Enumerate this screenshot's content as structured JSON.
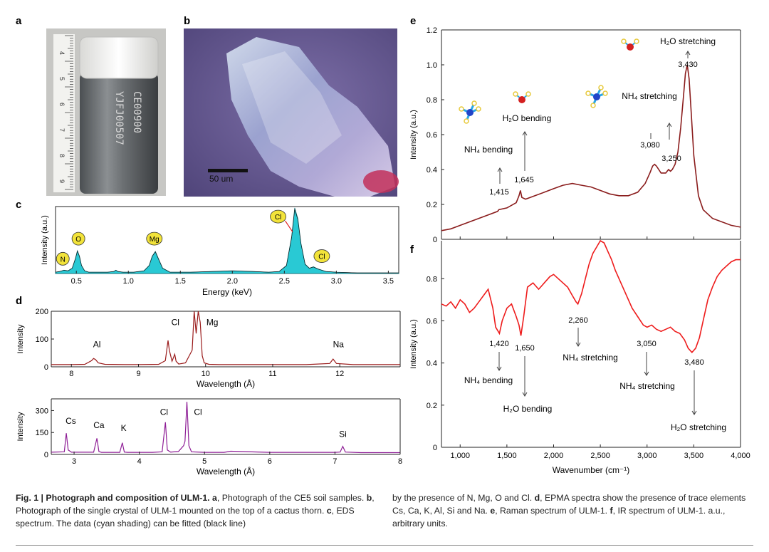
{
  "panels": {
    "a": {
      "label": "a",
      "ruler_numbers": [
        "4",
        "5",
        "6",
        "7",
        "8",
        "9"
      ],
      "vial_text": [
        "CE00900",
        "YJFJ00507"
      ]
    },
    "b": {
      "label": "b",
      "scalebar": "50 um"
    }
  },
  "chart_data": [
    {
      "id": "c",
      "type": "area",
      "panel_label": "c",
      "title": "",
      "xlabel": "Energy (keV)",
      "ylabel": "Intensity (a.u.)",
      "xlim": [
        0.3,
        3.6
      ],
      "ylim": [
        0,
        1.0
      ],
      "xticks": [
        "0.5",
        "1.0",
        "1.5",
        "2.0",
        "2.5",
        "3.0",
        "3.5"
      ],
      "x": [
        0.3,
        0.34,
        0.38,
        0.42,
        0.46,
        0.49,
        0.51,
        0.53,
        0.55,
        0.58,
        0.62,
        0.7,
        0.8,
        0.86,
        0.88,
        0.9,
        0.95,
        1.05,
        1.15,
        1.2,
        1.23,
        1.26,
        1.29,
        1.33,
        1.4,
        1.6,
        1.8,
        2.0,
        2.2,
        2.35,
        2.45,
        2.52,
        2.57,
        2.6,
        2.63,
        2.66,
        2.7,
        2.74,
        2.78,
        2.82,
        2.9,
        3.0,
        3.2,
        3.4,
        3.6
      ],
      "y": [
        0.02,
        0.03,
        0.05,
        0.04,
        0.08,
        0.22,
        0.34,
        0.26,
        0.12,
        0.04,
        0.02,
        0.02,
        0.02,
        0.03,
        0.05,
        0.03,
        0.02,
        0.02,
        0.04,
        0.12,
        0.26,
        0.33,
        0.22,
        0.08,
        0.02,
        0.02,
        0.03,
        0.04,
        0.03,
        0.02,
        0.03,
        0.12,
        0.55,
        0.98,
        0.82,
        0.45,
        0.14,
        0.08,
        0.1,
        0.07,
        0.03,
        0.02,
        0.01,
        0.01,
        0.01
      ],
      "annotations": [
        {
          "text": "N",
          "x": 0.37,
          "y": 0.22
        },
        {
          "text": "O",
          "x": 0.52,
          "y": 0.52
        },
        {
          "text": "Mg",
          "x": 1.25,
          "y": 0.52
        },
        {
          "text": "Cl",
          "x": 2.44,
          "y": 0.85
        },
        {
          "text": "Cl",
          "x": 2.86,
          "y": 0.26
        }
      ]
    },
    {
      "id": "d1",
      "type": "line",
      "panel_label": "d",
      "xlabel": "Wavelength (Å)",
      "ylabel": "Intensity",
      "xlim": [
        7.7,
        12.9
      ],
      "ylim": [
        0,
        200
      ],
      "xticks": [
        "8",
        "9",
        "10",
        "11",
        "12"
      ],
      "yticks": [
        "0",
        "100",
        "200"
      ],
      "x": [
        7.7,
        8.0,
        8.2,
        8.3,
        8.33,
        8.36,
        8.4,
        8.5,
        8.8,
        9.0,
        9.3,
        9.4,
        9.44,
        9.46,
        9.5,
        9.54,
        9.56,
        9.6,
        9.7,
        9.8,
        9.83,
        9.86,
        9.89,
        9.92,
        9.95,
        9.98,
        10.05,
        10.2,
        10.5,
        11.0,
        11.5,
        11.85,
        11.9,
        11.95,
        12.2,
        12.6,
        12.9
      ],
      "y": [
        8,
        8,
        9,
        22,
        30,
        26,
        14,
        9,
        8,
        8,
        9,
        22,
        95,
        60,
        20,
        45,
        20,
        10,
        14,
        60,
        200,
        120,
        210,
        160,
        40,
        14,
        9,
        8,
        8,
        8,
        8,
        12,
        28,
        12,
        8,
        8,
        8
      ],
      "annotations": [
        {
          "text": "Al",
          "x": 8.38,
          "y": 70
        },
        {
          "text": "Cl",
          "x": 9.55,
          "y": 150
        },
        {
          "text": "Mg",
          "x": 10.1,
          "y": 150
        },
        {
          "text": "Na",
          "x": 11.98,
          "y": 70
        }
      ]
    },
    {
      "id": "d2",
      "type": "line",
      "xlabel": "Wavelength (Å)",
      "ylabel": "Intensity",
      "xlim": [
        2.65,
        8.0
      ],
      "ylim": [
        0,
        380
      ],
      "xticks": [
        "3",
        "4",
        "5",
        "6",
        "7",
        "8"
      ],
      "yticks": [
        "0",
        "150",
        "300"
      ],
      "x": [
        2.65,
        2.85,
        2.88,
        2.91,
        2.96,
        3.3,
        3.35,
        3.38,
        3.42,
        3.7,
        3.74,
        3.77,
        3.82,
        4.2,
        4.35,
        4.4,
        4.43,
        4.48,
        4.6,
        4.68,
        4.7,
        4.73,
        4.76,
        4.8,
        5.0,
        5.3,
        5.4,
        6.0,
        7.0,
        7.08,
        7.12,
        7.16,
        7.4,
        8.0
      ],
      "y": [
        15,
        18,
        145,
        30,
        15,
        15,
        110,
        20,
        14,
        14,
        80,
        16,
        14,
        14,
        18,
        220,
        30,
        16,
        20,
        60,
        90,
        360,
        60,
        18,
        14,
        14,
        22,
        14,
        14,
        16,
        55,
        16,
        12,
        12
      ],
      "annotations": [
        {
          "text": "Cs",
          "x": 2.95,
          "y": 210
        },
        {
          "text": "Ca",
          "x": 3.38,
          "y": 180
        },
        {
          "text": "K",
          "x": 3.76,
          "y": 160
        },
        {
          "text": "Cl",
          "x": 4.38,
          "y": 270
        },
        {
          "text": "Cl",
          "x": 4.9,
          "y": 270
        },
        {
          "text": "Si",
          "x": 7.12,
          "y": 120
        }
      ]
    },
    {
      "id": "e",
      "type": "line",
      "panel_label": "e",
      "ylabel": "Intensity (a.u.)",
      "xlim": [
        800,
        4000
      ],
      "ylim": [
        0,
        1.2
      ],
      "yticks": [
        "0",
        "0.2",
        "0.4",
        "0.6",
        "0.8",
        "1.0",
        "1.2"
      ],
      "x": [
        800,
        900,
        1000,
        1100,
        1200,
        1300,
        1400,
        1415,
        1500,
        1600,
        1630,
        1645,
        1660,
        1700,
        1800,
        1900,
        2000,
        2100,
        2200,
        2300,
        2400,
        2500,
        2600,
        2700,
        2800,
        2900,
        2980,
        3030,
        3060,
        3080,
        3100,
        3150,
        3200,
        3230,
        3250,
        3270,
        3300,
        3330,
        3360,
        3390,
        3410,
        3430,
        3450,
        3470,
        3500,
        3550,
        3600,
        3700,
        3800,
        3900,
        4000
      ],
      "y": [
        0.05,
        0.06,
        0.08,
        0.1,
        0.12,
        0.14,
        0.16,
        0.17,
        0.18,
        0.21,
        0.25,
        0.28,
        0.24,
        0.23,
        0.25,
        0.27,
        0.29,
        0.31,
        0.32,
        0.31,
        0.3,
        0.28,
        0.26,
        0.25,
        0.25,
        0.27,
        0.32,
        0.38,
        0.42,
        0.43,
        0.42,
        0.38,
        0.38,
        0.4,
        0.39,
        0.4,
        0.43,
        0.5,
        0.64,
        0.82,
        0.95,
        1.0,
        0.92,
        0.75,
        0.48,
        0.25,
        0.17,
        0.12,
        0.1,
        0.08,
        0.07
      ],
      "annotations": [
        {
          "text": "1,415",
          "x": 1415
        },
        {
          "text": "1,645",
          "x": 1645
        },
        {
          "text": "3,080",
          "x": 3080
        },
        {
          "text": "3,250",
          "x": 3250
        },
        {
          "text": "3,430",
          "x": 3430
        }
      ],
      "labels": {
        "nh4_bending": "NH₄ bending",
        "h2o_bending": "H₂O bending",
        "nh4_stretching": "NH₄ stretching",
        "h2o_stretching": "H₂O stretching"
      }
    },
    {
      "id": "f",
      "type": "line",
      "panel_label": "f",
      "xlabel": "Wavenumber (cm⁻¹)",
      "ylabel": "Intensity (a.u.)",
      "xlim": [
        800,
        4000
      ],
      "ylim": [
        0,
        0.98
      ],
      "xticks": [
        "1,000",
        "1,500",
        "2,000",
        "2,500",
        "3,000",
        "3,500",
        "4,000"
      ],
      "yticks": [
        "0",
        "0.2",
        "0.4",
        "0.6",
        "0.8"
      ],
      "x": [
        800,
        850,
        900,
        950,
        1000,
        1050,
        1100,
        1150,
        1200,
        1250,
        1300,
        1350,
        1380,
        1420,
        1450,
        1500,
        1550,
        1600,
        1630,
        1650,
        1680,
        1720,
        1780,
        1840,
        1900,
        1960,
        2000,
        2050,
        2100,
        2150,
        2200,
        2240,
        2260,
        2300,
        2340,
        2380,
        2420,
        2460,
        2500,
        2540,
        2580,
        2620,
        2660,
        2720,
        2780,
        2840,
        2900,
        2960,
        3000,
        3050,
        3100,
        3150,
        3200,
        3250,
        3300,
        3350,
        3400,
        3440,
        3480,
        3520,
        3560,
        3600,
        3650,
        3700,
        3750,
        3800,
        3850,
        3900,
        3950,
        4000
      ],
      "y": [
        0.68,
        0.67,
        0.69,
        0.66,
        0.7,
        0.68,
        0.64,
        0.66,
        0.69,
        0.72,
        0.75,
        0.66,
        0.57,
        0.54,
        0.6,
        0.66,
        0.68,
        0.62,
        0.58,
        0.53,
        0.62,
        0.76,
        0.78,
        0.75,
        0.78,
        0.81,
        0.82,
        0.8,
        0.78,
        0.76,
        0.72,
        0.69,
        0.68,
        0.73,
        0.8,
        0.87,
        0.92,
        0.95,
        0.98,
        0.97,
        0.93,
        0.89,
        0.84,
        0.78,
        0.72,
        0.66,
        0.62,
        0.58,
        0.57,
        0.58,
        0.56,
        0.55,
        0.56,
        0.57,
        0.55,
        0.54,
        0.51,
        0.47,
        0.45,
        0.47,
        0.52,
        0.6,
        0.7,
        0.76,
        0.81,
        0.84,
        0.86,
        0.88,
        0.89,
        0.89
      ],
      "annotations": [
        {
          "text": "1,420",
          "x": 1420
        },
        {
          "text": "1,650",
          "x": 1650
        },
        {
          "text": "2,260",
          "x": 2260
        },
        {
          "text": "3,050",
          "x": 3050
        },
        {
          "text": "3,480",
          "x": 3480
        }
      ],
      "labels": {
        "nh4_bending": "NH₄ bending",
        "h2o_bending": "H₂O bending",
        "nh4_stretching_1": "NH₄ stretching",
        "nh4_stretching_2": "NH₄ stretching",
        "h2o_stretching": "H₂O stretching"
      }
    }
  ],
  "colors": {
    "eds_fill": "#29c9d4",
    "eds_line": "#0b6f78",
    "d1_line": "#9a1b1b",
    "d2_line": "#8e1e96",
    "raman_line": "#8a1c1c",
    "ir_line": "#ee1c1c",
    "badge_fill": "#f2e33a"
  },
  "caption": {
    "left_bold": "Fig. 1 | Photograph and composition of ULM-1.",
    "left_a": " a",
    "left_a_text": ", Photograph of the CE5 soil samples. ",
    "left_b": "b",
    "left_b_text": ", Photograph of the single crystal of ULM-1 mounted on the top of a cactus thorn. ",
    "left_c": "c",
    "left_c_text": ", EDS spectrum. The data (cyan shading) can be fitted (black line)",
    "right_text1": "by the presence of N, Mg, O and Cl. ",
    "right_d": "d",
    "right_text2": ", EPMA spectra show the presence of trace elements Cs, Ca, K, Al, Si and Na. ",
    "right_e": "e",
    "right_text3": ", Raman spectrum of ULM-1. ",
    "right_f": "f",
    "right_text4": ", IR spectrum of ULM-1. a.u., arbitrary units."
  }
}
